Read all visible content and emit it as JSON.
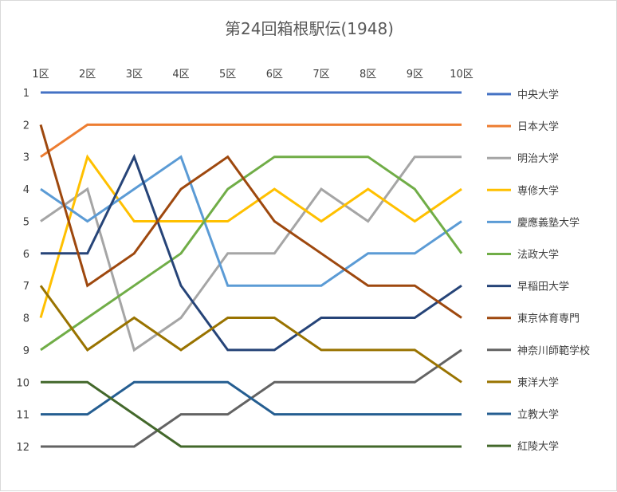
{
  "chart_data": {
    "type": "line",
    "title": "第24回箱根駅伝(1948)",
    "categories": [
      "1区",
      "2区",
      "3区",
      "4区",
      "5区",
      "6区",
      "7区",
      "8区",
      "9区",
      "10区"
    ],
    "y_ticks": [
      "1",
      "2",
      "3",
      "4",
      "5",
      "6",
      "7",
      "8",
      "9",
      "10",
      "11",
      "12"
    ],
    "ylim": [
      1,
      12
    ],
    "y_reversed": true,
    "x_axis_position": "top",
    "grid": false,
    "legend_position": "right",
    "series": [
      {
        "name": "中央大学",
        "color": "#4472C4",
        "values": [
          1,
          1,
          1,
          1,
          1,
          1,
          1,
          1,
          1,
          1
        ]
      },
      {
        "name": "日本大学",
        "color": "#ED7D31",
        "values": [
          3,
          2,
          2,
          2,
          2,
          2,
          2,
          2,
          2,
          2
        ]
      },
      {
        "name": "明治大学",
        "color": "#A5A5A5",
        "values": [
          5,
          4,
          9,
          8,
          6,
          6,
          4,
          5,
          3,
          3
        ]
      },
      {
        "name": "専修大学",
        "color": "#FFC000",
        "values": [
          8,
          3,
          5,
          5,
          5,
          4,
          5,
          4,
          5,
          4
        ]
      },
      {
        "name": "慶應義塾大学",
        "color": "#5B9BD5",
        "values": [
          4,
          5,
          4,
          3,
          7,
          7,
          7,
          6,
          6,
          5
        ]
      },
      {
        "name": "法政大学",
        "color": "#70AD47",
        "values": [
          9,
          8,
          7,
          6,
          4,
          3,
          3,
          3,
          4,
          6
        ]
      },
      {
        "name": "早稲田大学",
        "color": "#264478",
        "values": [
          6,
          6,
          3,
          7,
          9,
          9,
          8,
          8,
          8,
          7
        ]
      },
      {
        "name": "東京体育専門",
        "color": "#9E480E",
        "values": [
          2,
          7,
          6,
          4,
          3,
          5,
          6,
          7,
          7,
          8
        ]
      },
      {
        "name": "神奈川師範学校",
        "color": "#636363",
        "values": [
          12,
          12,
          12,
          11,
          11,
          10,
          10,
          10,
          10,
          9
        ]
      },
      {
        "name": "東洋大学",
        "color": "#997300",
        "values": [
          7,
          9,
          8,
          9,
          8,
          8,
          9,
          9,
          9,
          10
        ]
      },
      {
        "name": "立教大学",
        "color": "#255E91",
        "values": [
          11,
          11,
          10,
          10,
          10,
          11,
          11,
          11,
          11,
          11
        ]
      },
      {
        "name": "紅陵大学",
        "color": "#43682B",
        "values": [
          10,
          10,
          11,
          12,
          12,
          12,
          12,
          12,
          12,
          12
        ]
      }
    ]
  }
}
